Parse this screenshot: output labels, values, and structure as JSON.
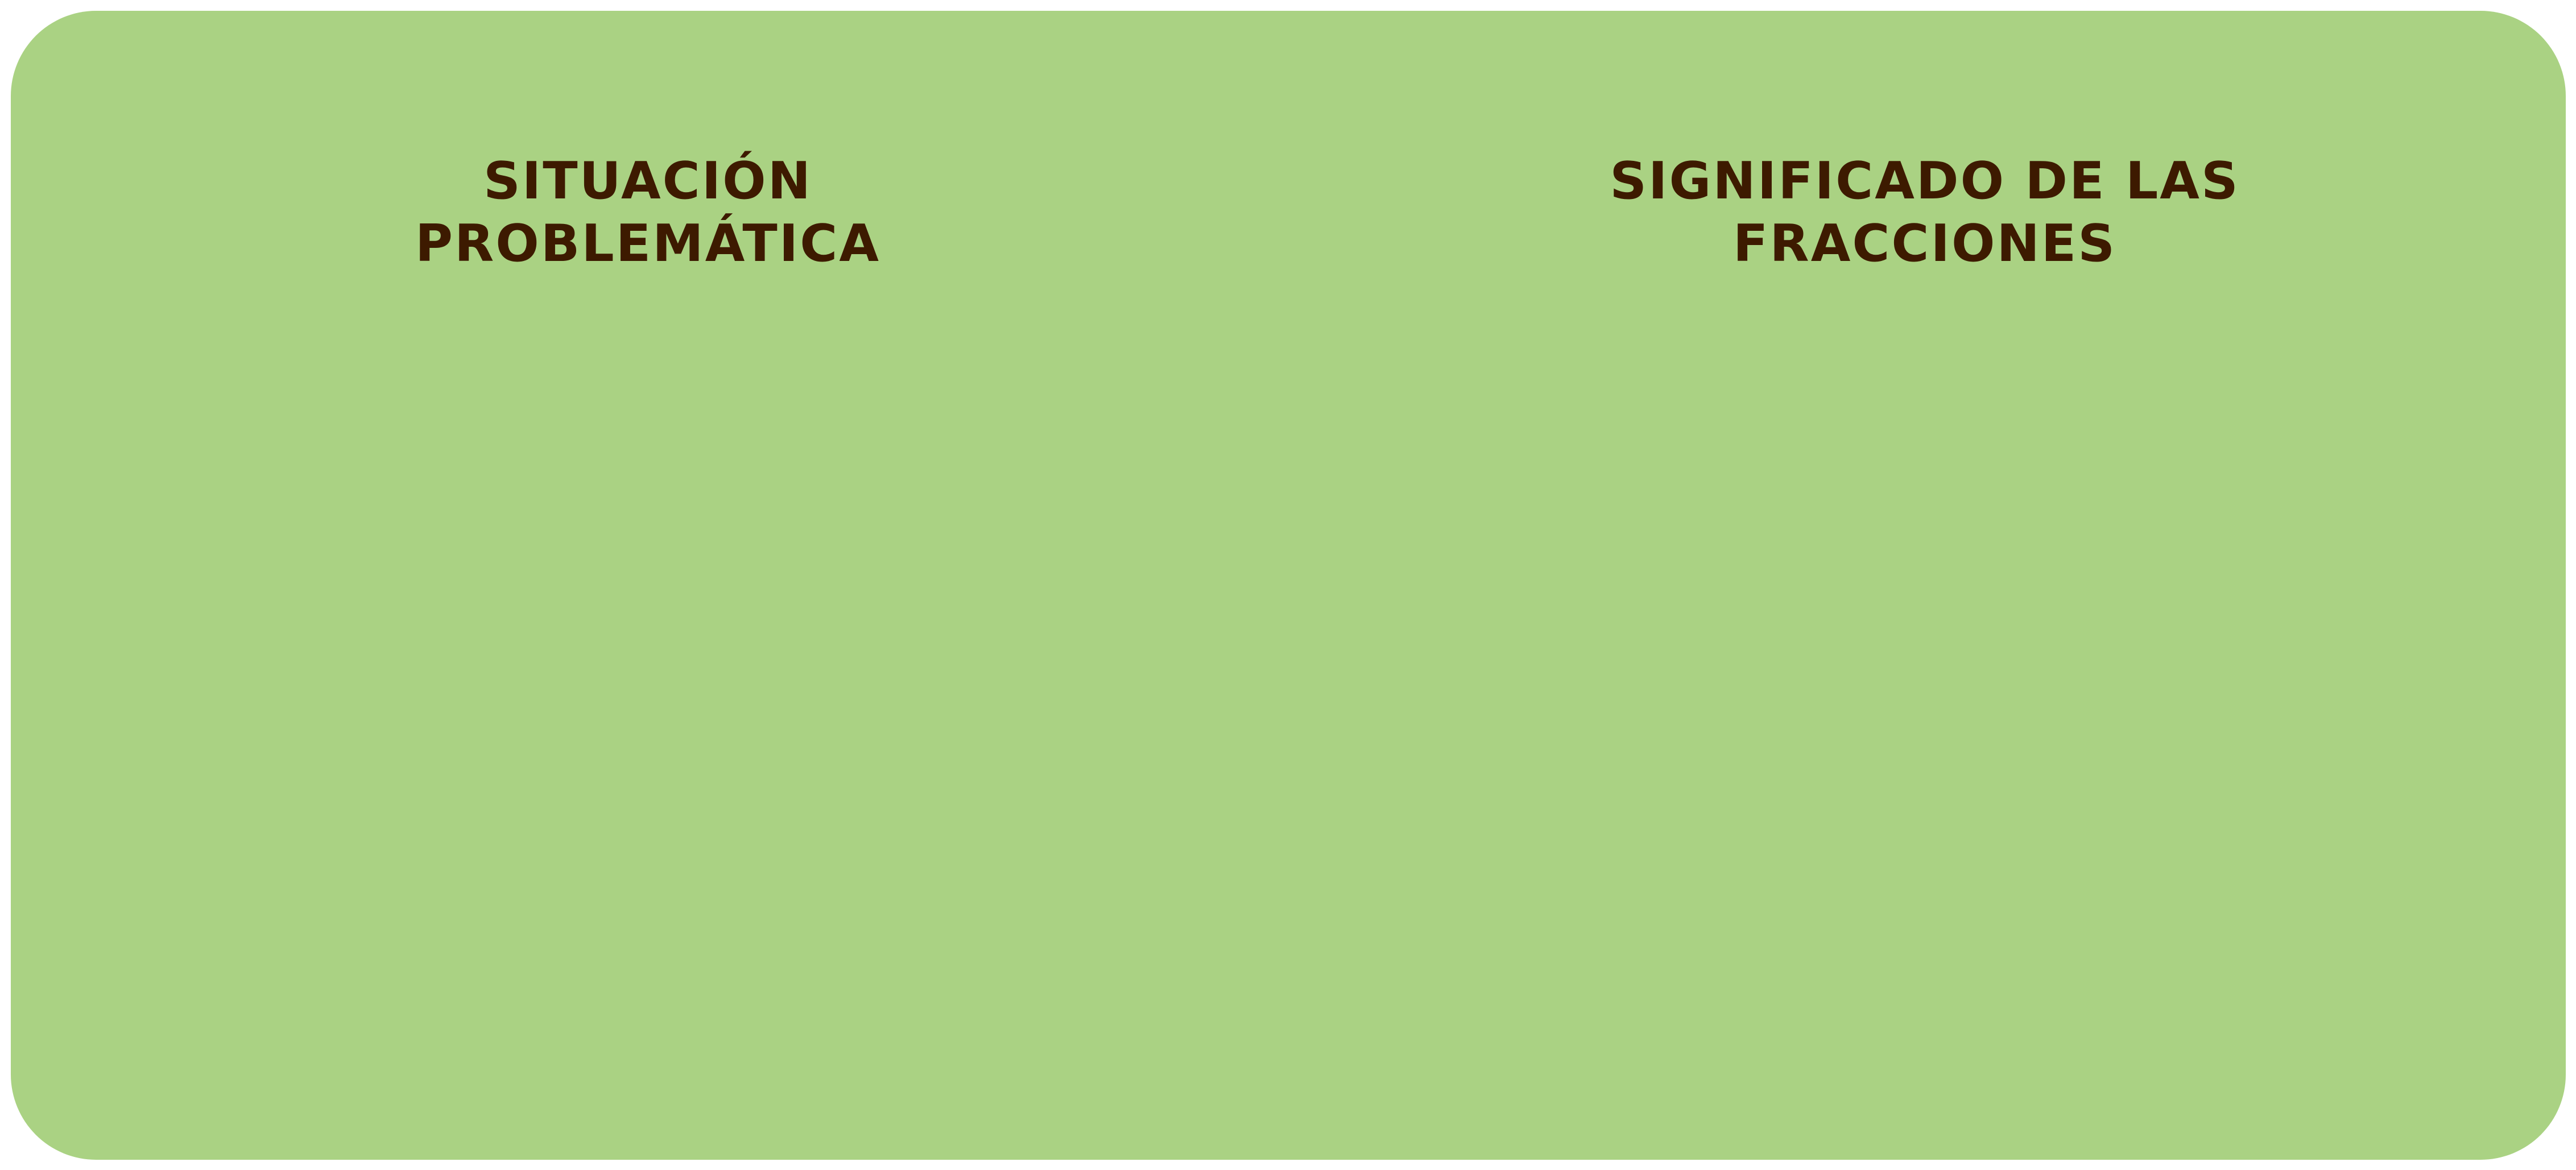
{
  "panel": {
    "background_color": "#aad283",
    "text_color": "#3d1a00"
  },
  "left_heading": {
    "line1": "SITUACIÓN",
    "line2": "PROBLEMÁTICA"
  },
  "right_heading": {
    "line1": "SIGNIFICADO DE LAS",
    "line2": "FRACCIONES"
  }
}
